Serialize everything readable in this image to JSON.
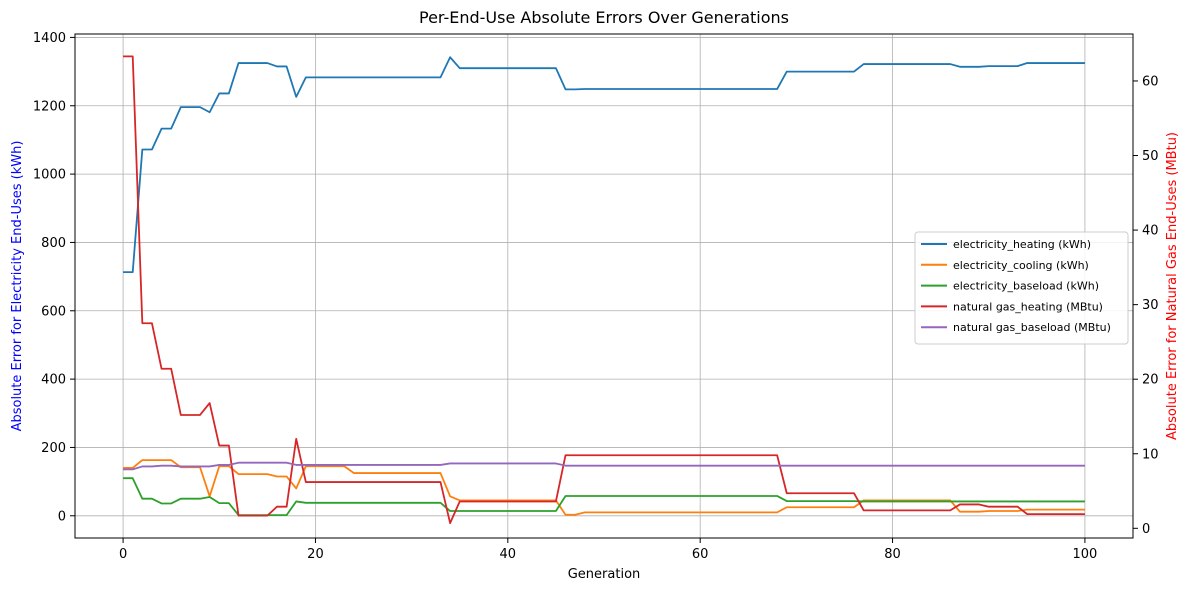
{
  "chart_data": {
    "type": "line",
    "title": "Per-End-Use Absolute Errors Over Generations",
    "xlabel": "Generation",
    "ylabel_left": "Absolute Error for Electricity End-Uses (kWh)",
    "ylabel_right": "Absolute Error for Natural Gas End-Uses (MBtu)",
    "ylabel_left_color": "#0000ff",
    "ylabel_right_color": "#ff0000",
    "xlim": [
      -5,
      105
    ],
    "ylim_left": [
      -65,
      1410
    ],
    "ylim_right": [
      -1.3,
      66.3
    ],
    "x_ticks": [
      0,
      20,
      40,
      60,
      80,
      100
    ],
    "y_left_ticks": [
      0,
      200,
      400,
      600,
      800,
      1000,
      1200,
      1400
    ],
    "y_right_ticks": [
      0,
      10,
      20,
      30,
      40,
      50,
      60
    ],
    "grid": true,
    "legend_position": "center-right",
    "series": [
      {
        "name": "electricity_heating (kWh)",
        "axis": "left",
        "color": "#1f77b4",
        "points": [
          [
            0,
            713
          ],
          [
            1,
            713
          ],
          [
            2,
            1072
          ],
          [
            3,
            1072
          ],
          [
            4,
            1133
          ],
          [
            5,
            1133
          ],
          [
            6,
            1196
          ],
          [
            7,
            1196
          ],
          [
            8,
            1196
          ],
          [
            9,
            1181
          ],
          [
            10,
            1236
          ],
          [
            11,
            1236
          ],
          [
            12,
            1325
          ],
          [
            13,
            1325
          ],
          [
            14,
            1325
          ],
          [
            15,
            1325
          ],
          [
            16,
            1315
          ],
          [
            17,
            1315
          ],
          [
            18,
            1226
          ],
          [
            19,
            1283
          ],
          [
            20,
            1283
          ],
          [
            33,
            1283
          ],
          [
            34,
            1342
          ],
          [
            35,
            1310
          ],
          [
            45,
            1310
          ],
          [
            46,
            1248
          ],
          [
            47,
            1248
          ],
          [
            48,
            1249
          ],
          [
            68,
            1249
          ],
          [
            69,
            1300
          ],
          [
            76,
            1300
          ],
          [
            77,
            1322
          ],
          [
            86,
            1322
          ],
          [
            87,
            1314
          ],
          [
            89,
            1314
          ],
          [
            90,
            1316
          ],
          [
            93,
            1316
          ],
          [
            94,
            1325
          ],
          [
            100,
            1325
          ]
        ]
      },
      {
        "name": "electricity_cooling (kWh)",
        "axis": "left",
        "color": "#ff7f0e",
        "points": [
          [
            0,
            140
          ],
          [
            1,
            140
          ],
          [
            2,
            163
          ],
          [
            3,
            163
          ],
          [
            4,
            163
          ],
          [
            5,
            163
          ],
          [
            6,
            142
          ],
          [
            7,
            142
          ],
          [
            8,
            142
          ],
          [
            9,
            57
          ],
          [
            10,
            145
          ],
          [
            11,
            145
          ],
          [
            12,
            122
          ],
          [
            13,
            122
          ],
          [
            14,
            122
          ],
          [
            15,
            122
          ],
          [
            16,
            115
          ],
          [
            17,
            115
          ],
          [
            18,
            80
          ],
          [
            19,
            145
          ],
          [
            20,
            145
          ],
          [
            23,
            145
          ],
          [
            24,
            125
          ],
          [
            33,
            125
          ],
          [
            34,
            57
          ],
          [
            35,
            45
          ],
          [
            45,
            45
          ],
          [
            46,
            3
          ],
          [
            47,
            3
          ],
          [
            48,
            10
          ],
          [
            68,
            10
          ],
          [
            69,
            25
          ],
          [
            76,
            25
          ],
          [
            77,
            45
          ],
          [
            86,
            45
          ],
          [
            87,
            12
          ],
          [
            89,
            12
          ],
          [
            90,
            14
          ],
          [
            93,
            14
          ],
          [
            94,
            18
          ],
          [
            100,
            18
          ]
        ]
      },
      {
        "name": "electricity_baseload (kWh)",
        "axis": "left",
        "color": "#2ca02c",
        "points": [
          [
            0,
            110
          ],
          [
            1,
            110
          ],
          [
            2,
            50
          ],
          [
            3,
            50
          ],
          [
            4,
            36
          ],
          [
            5,
            36
          ],
          [
            6,
            50
          ],
          [
            7,
            50
          ],
          [
            8,
            50
          ],
          [
            9,
            55
          ],
          [
            10,
            37
          ],
          [
            11,
            37
          ],
          [
            12,
            2
          ],
          [
            13,
            2
          ],
          [
            14,
            2
          ],
          [
            15,
            2
          ],
          [
            16,
            2
          ],
          [
            17,
            2
          ],
          [
            18,
            42
          ],
          [
            19,
            38
          ],
          [
            20,
            38
          ],
          [
            33,
            38
          ],
          [
            34,
            14
          ],
          [
            35,
            14
          ],
          [
            45,
            14
          ],
          [
            46,
            58
          ],
          [
            47,
            58
          ],
          [
            68,
            58
          ],
          [
            69,
            43
          ],
          [
            76,
            43
          ],
          [
            77,
            42
          ],
          [
            100,
            42
          ]
        ]
      },
      {
        "name": "natural gas_heating (MBtu)",
        "axis": "right",
        "color": "#d62728",
        "points": [
          [
            0,
            63.3
          ],
          [
            1,
            63.3
          ],
          [
            2,
            27.5
          ],
          [
            3,
            27.5
          ],
          [
            4,
            21.4
          ],
          [
            5,
            21.4
          ],
          [
            6,
            15.2
          ],
          [
            7,
            15.2
          ],
          [
            8,
            15.2
          ],
          [
            9,
            16.8
          ],
          [
            10,
            11.1
          ],
          [
            11,
            11.1
          ],
          [
            12,
            1.7
          ],
          [
            13,
            1.7
          ],
          [
            14,
            1.7
          ],
          [
            15,
            1.7
          ],
          [
            16,
            2.9
          ],
          [
            17,
            2.9
          ],
          [
            18,
            12.0
          ],
          [
            19,
            6.2
          ],
          [
            20,
            6.2
          ],
          [
            33,
            6.2
          ],
          [
            34,
            0.7
          ],
          [
            35,
            3.6
          ],
          [
            45,
            3.6
          ],
          [
            46,
            9.8
          ],
          [
            47,
            9.8
          ],
          [
            68,
            9.8
          ],
          [
            69,
            4.7
          ],
          [
            76,
            4.7
          ],
          [
            77,
            2.4
          ],
          [
            86,
            2.4
          ],
          [
            87,
            3.2
          ],
          [
            89,
            3.2
          ],
          [
            90,
            2.9
          ],
          [
            93,
            2.9
          ],
          [
            94,
            1.9
          ],
          [
            100,
            1.9
          ]
        ]
      },
      {
        "name": "natural gas_baseload (MBtu)",
        "axis": "right",
        "color": "#9467bd",
        "points": [
          [
            0,
            7.9
          ],
          [
            1,
            7.9
          ],
          [
            2,
            8.3
          ],
          [
            3,
            8.3
          ],
          [
            4,
            8.4
          ],
          [
            5,
            8.4
          ],
          [
            6,
            8.3
          ],
          [
            7,
            8.3
          ],
          [
            9,
            8.3
          ],
          [
            10,
            8.5
          ],
          [
            11,
            8.5
          ],
          [
            12,
            8.8
          ],
          [
            17,
            8.8
          ],
          [
            18,
            8.5
          ],
          [
            33,
            8.5
          ],
          [
            34,
            8.7
          ],
          [
            45,
            8.7
          ],
          [
            46,
            8.4
          ],
          [
            100,
            8.4
          ]
        ]
      }
    ]
  }
}
